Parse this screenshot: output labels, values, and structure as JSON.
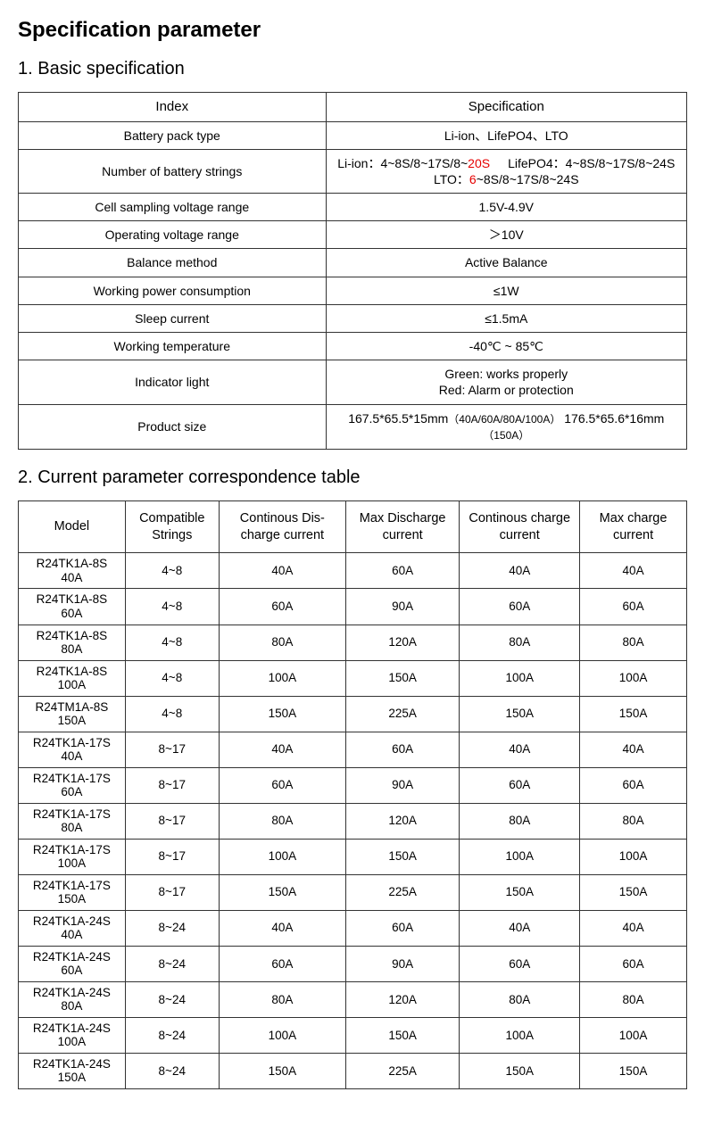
{
  "mainTitle": "Specification parameter",
  "section1": {
    "title": "1. Basic specification",
    "headers": [
      "Index",
      "Specification"
    ],
    "rows": [
      {
        "index": "Battery pack type",
        "spec": "Li-ion、LifePO4、LTO"
      },
      {
        "index": "Number of battery strings",
        "spec_html": true,
        "parts": {
          "p1": "Li-ion：4~8S/8~17S/8~",
          "p2red": "20S",
          "p3": "LifePO4：4~8S/8~17S/8~24S",
          "p4": "LTO：",
          "p5red": "6",
          "p6": "~8S/8~17S/8~24S"
        }
      },
      {
        "index": "Cell sampling voltage range",
        "spec": "1.5V-4.9V"
      },
      {
        "index": "Operating voltage range",
        "spec": "＞10V"
      },
      {
        "index": "Balance method",
        "spec": "Active Balance"
      },
      {
        "index": "Working power consumption",
        "spec": "≤1W"
      },
      {
        "index": "Sleep current",
        "spec": "≤1.5mA"
      },
      {
        "index": "Working temperature",
        "spec": "-40℃ ~ 85℃"
      },
      {
        "index": "Indicator light",
        "spec_indicator": true,
        "green": "Green: works properly",
        "red": "Red: Alarm or protection"
      },
      {
        "index": "Product size",
        "spec_size": true,
        "size1": "167.5*65.5*15mm",
        "size1note": "（40A/60A/80A/100A）",
        "size2": "176.5*65.6*16mm",
        "size2note": "（150A）"
      }
    ]
  },
  "section2": {
    "title": "2. Current parameter correspondence table",
    "headers": [
      "Model",
      "Compatible Strings",
      "Continous Dis-charge current",
      "Max Discharge current",
      "Continous charge current",
      "Max charge current"
    ],
    "rows": [
      {
        "model1": "R24TK1A-8S",
        "model2": "40A",
        "strings": "4~8",
        "cdc": "40A",
        "mdc": "60A",
        "ccc": "40A",
        "mcc": "40A"
      },
      {
        "model1": "R24TK1A-8S",
        "model2": "60A",
        "strings": "4~8",
        "cdc": "60A",
        "mdc": "90A",
        "ccc": "60A",
        "mcc": "60A"
      },
      {
        "model1": "R24TK1A-8S",
        "model2": "80A",
        "strings": "4~8",
        "cdc": "80A",
        "mdc": "120A",
        "ccc": "80A",
        "mcc": "80A"
      },
      {
        "model1": "R24TK1A-8S",
        "model2": "100A",
        "strings": "4~8",
        "cdc": "100A",
        "mdc": "150A",
        "ccc": "100A",
        "mcc": "100A"
      },
      {
        "model1": "R24TM1A-8S",
        "model2": "150A",
        "strings": "4~8",
        "cdc": "150A",
        "mdc": "225A",
        "ccc": "150A",
        "mcc": "150A"
      },
      {
        "model1": "R24TK1A-17S",
        "model2": "40A",
        "strings": "8~17",
        "cdc": "40A",
        "mdc": "60A",
        "ccc": "40A",
        "mcc": "40A"
      },
      {
        "model1": "R24TK1A-17S",
        "model2": "60A",
        "strings": "8~17",
        "cdc": "60A",
        "mdc": "90A",
        "ccc": "60A",
        "mcc": "60A"
      },
      {
        "model1": "R24TK1A-17S",
        "model2": "80A",
        "strings": "8~17",
        "cdc": "80A",
        "mdc": "120A",
        "ccc": "80A",
        "mcc": "80A"
      },
      {
        "model1": "R24TK1A-17S",
        "model2": "100A",
        "strings": "8~17",
        "cdc": "100A",
        "mdc": "150A",
        "ccc": "100A",
        "mcc": "100A"
      },
      {
        "model1": "R24TK1A-17S",
        "model2": "150A",
        "strings": "8~17",
        "cdc": "150A",
        "mdc": "225A",
        "ccc": "150A",
        "mcc": "150A"
      },
      {
        "model1": "R24TK1A-24S",
        "model2": "40A",
        "strings": "8~24",
        "cdc": "40A",
        "mdc": "60A",
        "ccc": "40A",
        "mcc": "40A"
      },
      {
        "model1": "R24TK1A-24S",
        "model2": "60A",
        "strings": "8~24",
        "cdc": "60A",
        "mdc": "90A",
        "ccc": "60A",
        "mcc": "60A"
      },
      {
        "model1": "R24TK1A-24S",
        "model2": "80A",
        "strings": "8~24",
        "cdc": "80A",
        "mdc": "120A",
        "ccc": "80A",
        "mcc": "80A"
      },
      {
        "model1": "R24TK1A-24S",
        "model2": "100A",
        "strings": "8~24",
        "cdc": "100A",
        "mdc": "150A",
        "ccc": "100A",
        "mcc": "100A"
      },
      {
        "model1": "R24TK1A-24S",
        "model2": "150A",
        "strings": "8~24",
        "cdc": "150A",
        "mdc": "225A",
        "ccc": "150A",
        "mcc": "150A"
      }
    ],
    "colWidths": [
      "16%",
      "14%",
      "19%",
      "17%",
      "18%",
      "16%"
    ]
  },
  "colors": {
    "text": "#000000",
    "border": "#333333",
    "red": "#e60000",
    "background": "#ffffff"
  }
}
